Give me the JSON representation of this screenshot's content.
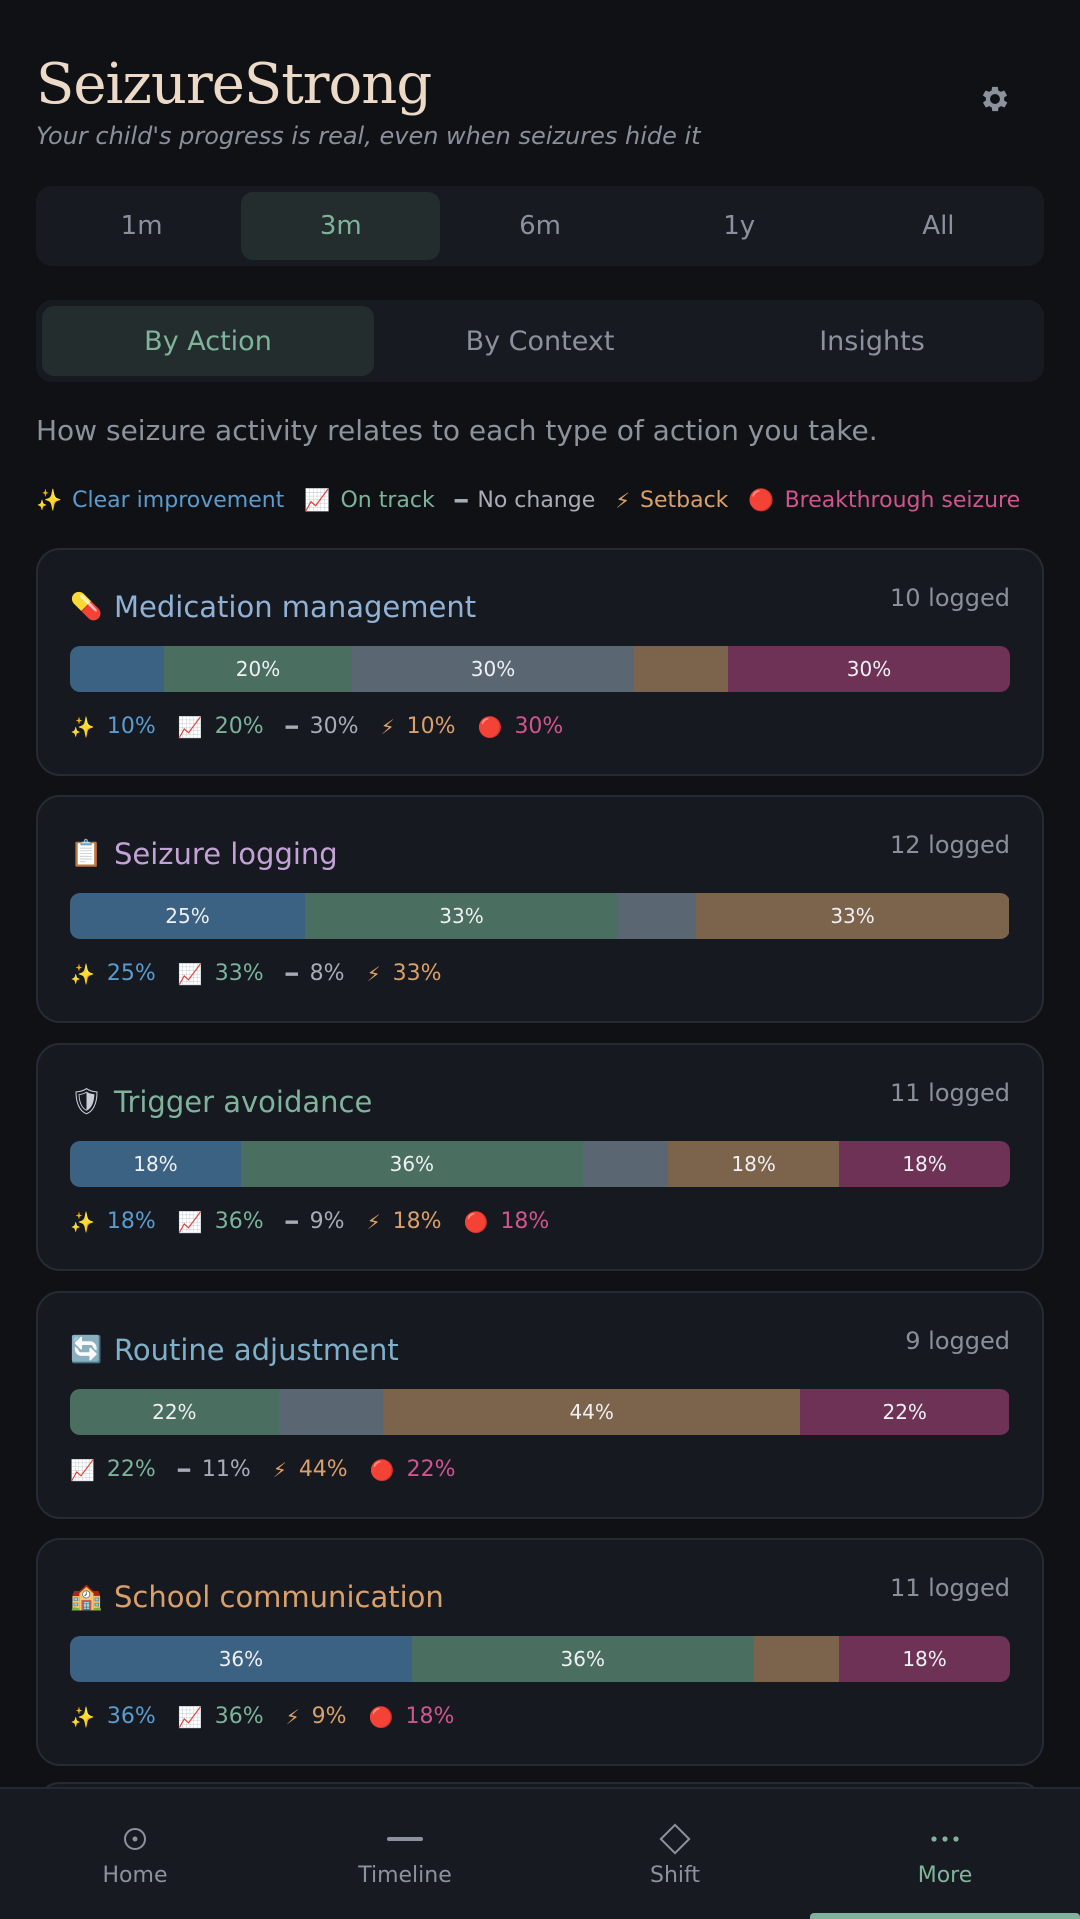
{
  "app": {
    "title": "SeizureStrong",
    "tagline": "Your child's progress is real, even when seizures hide it"
  },
  "range_tabs": [
    {
      "label": "1m",
      "active": false
    },
    {
      "label": "3m",
      "active": true
    },
    {
      "label": "6m",
      "active": false
    },
    {
      "label": "1y",
      "active": false
    },
    {
      "label": "All",
      "active": false
    }
  ],
  "view_tabs": [
    {
      "label": "By Action",
      "active": true
    },
    {
      "label": "By Context",
      "active": false
    },
    {
      "label": "Insights",
      "active": false
    }
  ],
  "intro": "How seizure activity relates to each type of action you take.",
  "legend": [
    {
      "key": "imp",
      "icon": "✨",
      "label": "Clear improvement"
    },
    {
      "key": "track",
      "icon": "📈",
      "label": "On track"
    },
    {
      "key": "none",
      "icon": "━",
      "label": "No change"
    },
    {
      "key": "set",
      "icon": "⚡",
      "label": "Setback"
    },
    {
      "key": "break",
      "icon": "🔴",
      "label": "Breakthrough seizure"
    }
  ],
  "cards": [
    {
      "icon": "💊",
      "title": "Medication management",
      "title_color": "#8fb2d6",
      "count": "10 logged",
      "segments": [
        {
          "key": "imp",
          "pct": 10,
          "label": ""
        },
        {
          "key": "track",
          "pct": 20,
          "label": "20%"
        },
        {
          "key": "none",
          "pct": 30,
          "label": "30%"
        },
        {
          "key": "set",
          "pct": 10,
          "label": ""
        },
        {
          "key": "break",
          "pct": 30,
          "label": "30%"
        }
      ],
      "stats": [
        {
          "key": "imp",
          "icon": "✨",
          "value": "10%"
        },
        {
          "key": "track",
          "icon": "📈",
          "value": "20%"
        },
        {
          "key": "none",
          "icon": "━",
          "value": "30%"
        },
        {
          "key": "set",
          "icon": "⚡",
          "value": "10%"
        },
        {
          "key": "break",
          "icon": "🔴",
          "value": "30%"
        }
      ]
    },
    {
      "icon": "📋",
      "title": "Seizure logging",
      "title_color": "#c3a3d6",
      "count": "12 logged",
      "segments": [
        {
          "key": "imp",
          "pct": 25,
          "label": "25%"
        },
        {
          "key": "track",
          "pct": 33.3,
          "label": "33%"
        },
        {
          "key": "none",
          "pct": 8.3,
          "label": ""
        },
        {
          "key": "set",
          "pct": 33.3,
          "label": "33%"
        }
      ],
      "stats": [
        {
          "key": "imp",
          "icon": "✨",
          "value": "25%"
        },
        {
          "key": "track",
          "icon": "📈",
          "value": "33%"
        },
        {
          "key": "none",
          "icon": "━",
          "value": "8%"
        },
        {
          "key": "set",
          "icon": "⚡",
          "value": "33%"
        }
      ]
    },
    {
      "icon": "🛡",
      "title": "Trigger avoidance",
      "title_color": "#7fb49b",
      "count": "11 logged",
      "segments": [
        {
          "key": "imp",
          "pct": 18.2,
          "label": "18%"
        },
        {
          "key": "track",
          "pct": 36.4,
          "label": "36%"
        },
        {
          "key": "none",
          "pct": 9.1,
          "label": ""
        },
        {
          "key": "set",
          "pct": 18.2,
          "label": "18%"
        },
        {
          "key": "break",
          "pct": 18.2,
          "label": "18%"
        }
      ],
      "stats": [
        {
          "key": "imp",
          "icon": "✨",
          "value": "18%"
        },
        {
          "key": "track",
          "icon": "📈",
          "value": "36%"
        },
        {
          "key": "none",
          "icon": "━",
          "value": "9%"
        },
        {
          "key": "set",
          "icon": "⚡",
          "value": "18%"
        },
        {
          "key": "break",
          "icon": "🔴",
          "value": "18%"
        }
      ]
    },
    {
      "icon": "🔄",
      "title": "Routine adjustment",
      "title_color": "#7fb0c9",
      "count": "9 logged",
      "segments": [
        {
          "key": "track",
          "pct": 22.2,
          "label": "22%"
        },
        {
          "key": "none",
          "pct": 11.1,
          "label": ""
        },
        {
          "key": "set",
          "pct": 44.4,
          "label": "44%"
        },
        {
          "key": "break",
          "pct": 22.2,
          "label": "22%"
        }
      ],
      "stats": [
        {
          "key": "track",
          "icon": "📈",
          "value": "22%"
        },
        {
          "key": "none",
          "icon": "━",
          "value": "11%"
        },
        {
          "key": "set",
          "icon": "⚡",
          "value": "44%"
        },
        {
          "key": "break",
          "icon": "🔴",
          "value": "22%"
        }
      ]
    },
    {
      "icon": "🏫",
      "title": "School communication",
      "title_color": "#d9a06a",
      "count": "11 logged",
      "segments": [
        {
          "key": "imp",
          "pct": 36.4,
          "label": "36%"
        },
        {
          "key": "track",
          "pct": 36.4,
          "label": "36%"
        },
        {
          "key": "set",
          "pct": 9.1,
          "label": ""
        },
        {
          "key": "break",
          "pct": 18.2,
          "label": "18%"
        }
      ],
      "stats": [
        {
          "key": "imp",
          "icon": "✨",
          "value": "36%"
        },
        {
          "key": "track",
          "icon": "📈",
          "value": "36%"
        },
        {
          "key": "set",
          "icon": "⚡",
          "value": "9%"
        },
        {
          "key": "break",
          "icon": "🔴",
          "value": "18%"
        }
      ]
    }
  ],
  "nav": [
    {
      "label": "Home",
      "icon": "home-icon",
      "active": false
    },
    {
      "label": "Timeline",
      "icon": "timeline-icon",
      "active": false
    },
    {
      "label": "Shift",
      "icon": "diamond-icon",
      "active": false
    },
    {
      "label": "More",
      "icon": "more-icon",
      "active": true
    }
  ],
  "colors": {
    "accent": "#7fb49b",
    "improvement": "#5b9ccf",
    "on_track": "#7bb49a",
    "no_change": "#a7acb5",
    "setback": "#d9a06a",
    "breakthrough": "#d0558f"
  }
}
